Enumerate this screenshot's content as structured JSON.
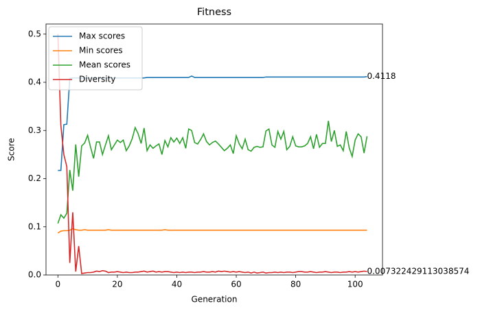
{
  "chart_data": {
    "type": "line",
    "title": "Fitness",
    "x_label": "Generation",
    "y_label": "Score",
    "x": [
      0,
      1,
      2,
      3,
      4,
      5,
      6,
      7,
      8,
      9,
      10,
      11,
      12,
      13,
      14,
      15,
      16,
      17,
      18,
      19,
      20,
      21,
      22,
      23,
      24,
      25,
      26,
      27,
      28,
      29,
      30,
      31,
      32,
      33,
      34,
      35,
      36,
      37,
      38,
      39,
      40,
      41,
      42,
      43,
      44,
      45,
      46,
      47,
      48,
      49,
      50,
      51,
      52,
      53,
      54,
      55,
      56,
      57,
      58,
      59,
      60,
      61,
      62,
      63,
      64,
      65,
      66,
      67,
      68,
      69,
      70,
      71,
      72,
      73,
      74,
      75,
      76,
      77,
      78,
      79,
      80,
      81,
      82,
      83,
      84,
      85,
      86,
      87,
      88,
      89,
      90,
      91,
      92,
      93,
      94,
      95,
      96,
      97,
      98,
      99,
      100,
      101,
      102,
      103,
      104
    ],
    "series": [
      {
        "name": "Max scores",
        "color": "#1f77b4",
        "values": [
          0.217,
          0.217,
          0.312,
          0.313,
          0.408,
          0.409,
          0.409,
          0.409,
          0.409,
          0.409,
          0.409,
          0.409,
          0.409,
          0.409,
          0.409,
          0.409,
          0.409,
          0.409,
          0.409,
          0.409,
          0.409,
          0.409,
          0.409,
          0.409,
          0.409,
          0.409,
          0.409,
          0.409,
          0.409,
          0.409,
          0.41,
          0.41,
          0.41,
          0.41,
          0.41,
          0.41,
          0.41,
          0.41,
          0.41,
          0.41,
          0.41,
          0.41,
          0.41,
          0.41,
          0.41,
          0.413,
          0.41,
          0.41,
          0.41,
          0.41,
          0.41,
          0.41,
          0.41,
          0.41,
          0.41,
          0.41,
          0.41,
          0.41,
          0.41,
          0.41,
          0.41,
          0.41,
          0.41,
          0.41,
          0.41,
          0.41,
          0.41,
          0.41,
          0.41,
          0.41,
          0.411,
          0.411,
          0.411,
          0.411,
          0.411,
          0.411,
          0.411,
          0.411,
          0.411,
          0.411,
          0.411,
          0.411,
          0.411,
          0.411,
          0.411,
          0.411,
          0.411,
          0.411,
          0.411,
          0.411,
          0.411,
          0.411,
          0.411,
          0.411,
          0.411,
          0.411,
          0.411,
          0.411,
          0.411,
          0.411,
          0.411,
          0.411,
          0.411,
          0.411,
          0.4118
        ]
      },
      {
        "name": "Min scores",
        "color": "#ff7f0e",
        "values": [
          0.087,
          0.091,
          0.092,
          0.092,
          0.093,
          0.096,
          0.094,
          0.093,
          0.093,
          0.094,
          0.093,
          0.093,
          0.093,
          0.093,
          0.093,
          0.093,
          0.093,
          0.094,
          0.093,
          0.093,
          0.093,
          0.093,
          0.093,
          0.093,
          0.093,
          0.093,
          0.093,
          0.093,
          0.093,
          0.093,
          0.093,
          0.093,
          0.093,
          0.093,
          0.093,
          0.093,
          0.094,
          0.093,
          0.093,
          0.093,
          0.093,
          0.093,
          0.093,
          0.093,
          0.093,
          0.093,
          0.093,
          0.093,
          0.093,
          0.093,
          0.093,
          0.093,
          0.093,
          0.093,
          0.093,
          0.093,
          0.093,
          0.093,
          0.093,
          0.093,
          0.093,
          0.093,
          0.093,
          0.093,
          0.093,
          0.093,
          0.093,
          0.093,
          0.093,
          0.093,
          0.093,
          0.093,
          0.093,
          0.093,
          0.093,
          0.093,
          0.093,
          0.093,
          0.093,
          0.093,
          0.093,
          0.093,
          0.093,
          0.093,
          0.093,
          0.093,
          0.093,
          0.093,
          0.093,
          0.093,
          0.093,
          0.093,
          0.093,
          0.093,
          0.093,
          0.093,
          0.093,
          0.093,
          0.093,
          0.093,
          0.093,
          0.093,
          0.093,
          0.093,
          0.093
        ]
      },
      {
        "name": "Mean scores",
        "color": "#2ca02c",
        "values": [
          0.107,
          0.125,
          0.118,
          0.128,
          0.218,
          0.175,
          0.271,
          0.204,
          0.268,
          0.274,
          0.29,
          0.265,
          0.242,
          0.276,
          0.276,
          0.25,
          0.27,
          0.289,
          0.26,
          0.27,
          0.28,
          0.275,
          0.28,
          0.258,
          0.268,
          0.283,
          0.306,
          0.293,
          0.273,
          0.305,
          0.258,
          0.27,
          0.263,
          0.268,
          0.272,
          0.25,
          0.279,
          0.266,
          0.285,
          0.276,
          0.284,
          0.273,
          0.285,
          0.263,
          0.303,
          0.3,
          0.275,
          0.272,
          0.281,
          0.293,
          0.277,
          0.27,
          0.275,
          0.278,
          0.272,
          0.265,
          0.258,
          0.263,
          0.27,
          0.252,
          0.289,
          0.272,
          0.262,
          0.282,
          0.26,
          0.257,
          0.265,
          0.267,
          0.265,
          0.266,
          0.299,
          0.303,
          0.27,
          0.265,
          0.298,
          0.282,
          0.298,
          0.26,
          0.267,
          0.287,
          0.268,
          0.266,
          0.266,
          0.268,
          0.273,
          0.287,
          0.262,
          0.292,
          0.265,
          0.273,
          0.273,
          0.32,
          0.277,
          0.3,
          0.267,
          0.27,
          0.258,
          0.298,
          0.264,
          0.246,
          0.28,
          0.293,
          0.287,
          0.253,
          0.288
        ]
      },
      {
        "name": "Diversity",
        "color": "#d62728",
        "values": [
          0.5,
          0.31,
          0.25,
          0.225,
          0.025,
          0.13,
          0.007,
          0.06,
          0.003,
          0.004,
          0.005,
          0.005,
          0.006,
          0.008,
          0.007,
          0.009,
          0.008,
          0.005,
          0.006,
          0.006,
          0.007,
          0.006,
          0.005,
          0.006,
          0.005,
          0.005,
          0.006,
          0.006,
          0.007,
          0.008,
          0.006,
          0.007,
          0.008,
          0.006,
          0.007,
          0.006,
          0.007,
          0.007,
          0.006,
          0.005,
          0.006,
          0.005,
          0.006,
          0.005,
          0.006,
          0.006,
          0.005,
          0.006,
          0.006,
          0.007,
          0.006,
          0.006,
          0.007,
          0.006,
          0.008,
          0.007,
          0.008,
          0.007,
          0.006,
          0.007,
          0.006,
          0.007,
          0.006,
          0.005,
          0.006,
          0.004,
          0.006,
          0.004,
          0.005,
          0.006,
          0.004,
          0.005,
          0.005,
          0.006,
          0.005,
          0.006,
          0.005,
          0.006,
          0.006,
          0.005,
          0.006,
          0.007,
          0.007,
          0.006,
          0.006,
          0.007,
          0.006,
          0.005,
          0.006,
          0.006,
          0.007,
          0.006,
          0.005,
          0.006,
          0.006,
          0.005,
          0.006,
          0.006,
          0.007,
          0.006,
          0.007,
          0.006,
          0.007,
          0.008,
          0.007322429113038574
        ]
      }
    ],
    "annotations": [
      {
        "text": "0.4118",
        "x": 104,
        "y": 0.4118
      },
      {
        "text": "0.007322429113038574",
        "x": 104,
        "y": 0.007322429113038574
      }
    ],
    "xlim": [
      -4,
      109.2
    ],
    "ylim": [
      0,
      0.521
    ],
    "xticks": [
      0,
      20,
      40,
      60,
      80,
      100
    ],
    "yticks": [
      {
        "value": 0,
        "label": "0.0"
      },
      0.1,
      0.2,
      0.3,
      0.4,
      0.5
    ],
    "legend_position": "upper-left"
  }
}
